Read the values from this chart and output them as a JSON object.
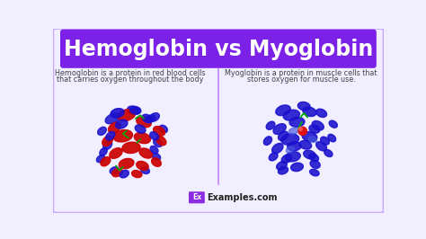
{
  "title": "Hemoglobin vs Myoglobin",
  "title_color": "#ffffff",
  "title_bg_color": "#7c22e8",
  "bg_color": "#f0eeff",
  "border_color": "#c8a8ff",
  "left_text_line1": "Hemoglobin is a protein in red blood cells",
  "left_text_line2": "that carries oxygen throughout the body",
  "right_text_line1": "Myoglobin is a protein in muscle cells that",
  "right_text_line2": "stores oxygen for muscle use.",
  "divider_color": "#c084fc",
  "footer_bg_color": "#8b2be2",
  "footer_text": "Examples.com",
  "footer_ex_text": "Ex",
  "text_color": "#444444",
  "red_helix": "#cc0000",
  "blue_helix": "#1a10cc",
  "blue_helix_light": "#4455dd",
  "green_line": "#00aa00",
  "red_dot": "#dd1111"
}
